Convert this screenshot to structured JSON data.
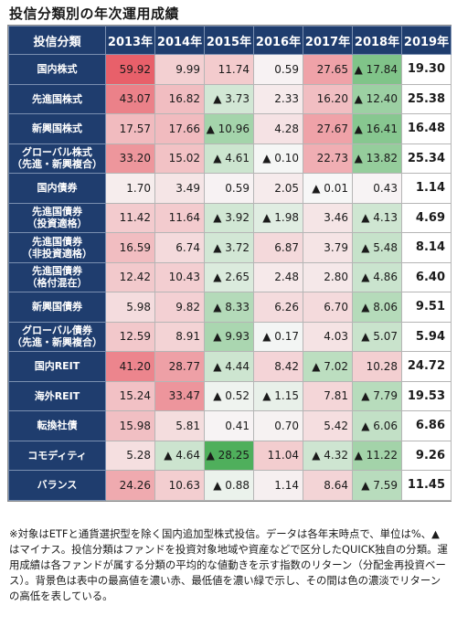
{
  "title": "投信分類別の年次運用成績",
  "note": "※対象はETFと通貨選択型を除く国内追加型株式投信。データは各年末時点で、単位は%、▲はマイナス。投信分類はファンドを投資対象地域や資産などで区分したQUICK独自の分類。運用成績は各ファンドが属する分類の平均的な値動きを示す指数のリターン（分配金再投資ベース）。背景色は表中の最高値を濃い赤、最低値を濃い緑で示し、その間は色の濃淡でリターンの高低を表している。",
  "colors": {
    "header_bg": "#1f3d6e",
    "max_color": "#e8606a",
    "min_color": "#4faf5c",
    "mid_color": "#f7f7f7"
  },
  "chart_data": {
    "type": "table",
    "title": "投信分類別の年次運用成績",
    "column_header": "投信分類",
    "years": [
      "2013年",
      "2014年",
      "2015年",
      "2016年",
      "2017年",
      "2018年",
      "2019年"
    ],
    "rows": [
      {
        "label": [
          "国内株式"
        ],
        "values": [
          59.92,
          9.99,
          11.74,
          0.59,
          27.65,
          -17.84,
          19.3
        ]
      },
      {
        "label": [
          "先進国株式"
        ],
        "values": [
          43.07,
          16.82,
          -3.73,
          2.33,
          16.2,
          -12.4,
          25.38
        ]
      },
      {
        "label": [
          "新興国株式"
        ],
        "values": [
          17.57,
          17.66,
          -10.96,
          4.28,
          27.67,
          -16.41,
          16.48
        ]
      },
      {
        "label": [
          "グローバル株式",
          "（先進・新興複合）"
        ],
        "values": [
          33.2,
          15.02,
          -4.61,
          -0.1,
          22.73,
          -13.82,
          25.34
        ]
      },
      {
        "label": [
          "国内債券"
        ],
        "values": [
          1.7,
          3.49,
          0.59,
          2.05,
          -0.01,
          0.43,
          1.14
        ]
      },
      {
        "label": [
          "先進国債券",
          "（投資適格）"
        ],
        "values": [
          11.42,
          11.64,
          -3.92,
          -1.98,
          3.46,
          -4.13,
          4.69
        ]
      },
      {
        "label": [
          "先進国債券",
          "（非投資適格）"
        ],
        "values": [
          16.59,
          6.74,
          -3.72,
          6.87,
          3.79,
          -5.48,
          8.14
        ]
      },
      {
        "label": [
          "先進国債券",
          "（格付混在）"
        ],
        "values": [
          12.42,
          10.43,
          -2.65,
          2.48,
          2.8,
          -4.86,
          6.4
        ]
      },
      {
        "label": [
          "新興国債券"
        ],
        "values": [
          5.98,
          9.82,
          -8.33,
          6.26,
          6.7,
          -8.06,
          9.51
        ]
      },
      {
        "label": [
          "グローバル債券",
          "（先進・新興複合）"
        ],
        "values": [
          12.59,
          8.91,
          -9.93,
          -0.17,
          4.03,
          -5.07,
          5.94
        ]
      },
      {
        "label": [
          "国内REIT"
        ],
        "values": [
          41.2,
          28.77,
          -4.44,
          8.42,
          -7.02,
          10.28,
          24.72
        ]
      },
      {
        "label": [
          "海外REIT"
        ],
        "values": [
          15.24,
          33.47,
          -0.52,
          -1.15,
          7.81,
          -7.79,
          19.53
        ]
      },
      {
        "label": [
          "転換社債"
        ],
        "values": [
          15.98,
          5.81,
          0.41,
          0.7,
          5.42,
          -6.06,
          6.86
        ]
      },
      {
        "label": [
          "コモディティ"
        ],
        "values": [
          5.28,
          -4.64,
          -28.25,
          11.04,
          -4.32,
          -11.22,
          9.26
        ]
      },
      {
        "label": [
          "バランス"
        ],
        "values": [
          24.26,
          10.63,
          -0.88,
          1.14,
          8.64,
          -7.59,
          11.45
        ]
      }
    ]
  }
}
